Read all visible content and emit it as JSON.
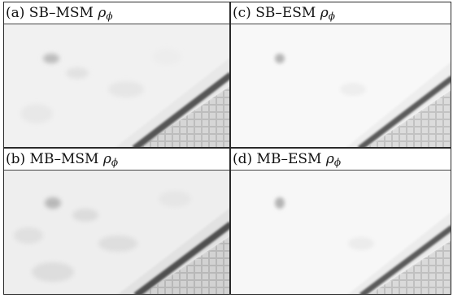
{
  "panels": [
    {
      "id": "a",
      "label": "(a) SB–MSM ",
      "symbol": "ρ",
      "subscript": "ϕ"
    },
    {
      "id": "c",
      "label": "(c) SB–ESM ",
      "symbol": "ρ",
      "subscript": "ϕ"
    },
    {
      "id": "b",
      "label": "(b) MB–MSM ",
      "symbol": "ρ",
      "subscript": "ϕ"
    },
    {
      "id": "d",
      "label": "(d) MB–ESM ",
      "symbol": "ρ",
      "subscript": "ϕ"
    }
  ]
}
